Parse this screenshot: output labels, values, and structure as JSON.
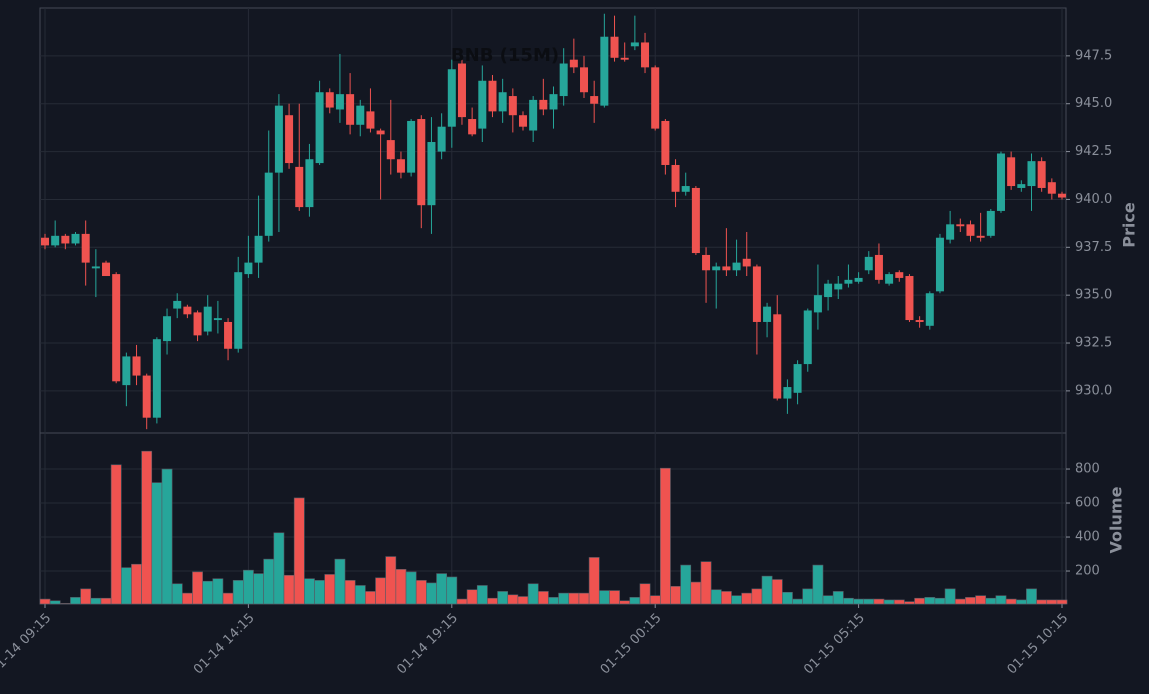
{
  "chart_data": {
    "type": "candlestick",
    "title": "BNB (15M)",
    "ylabel": "Price",
    "volume_label": "Volume",
    "categories": [
      "01-14 09:15",
      null,
      null,
      null,
      null,
      null,
      null,
      null,
      null,
      null,
      null,
      null,
      null,
      null,
      null,
      null,
      null,
      null,
      null,
      null,
      "01-14 14:15",
      null,
      null,
      null,
      null,
      null,
      null,
      null,
      null,
      null,
      null,
      null,
      null,
      null,
      null,
      null,
      null,
      null,
      null,
      null,
      "01-14 19:15",
      null,
      null,
      null,
      null,
      null,
      null,
      null,
      null,
      null,
      null,
      null,
      null,
      null,
      null,
      null,
      null,
      null,
      null,
      null,
      "01-15 00:15",
      null,
      null,
      null,
      null,
      null,
      null,
      null,
      null,
      null,
      null,
      null,
      null,
      null,
      null,
      null,
      null,
      null,
      null,
      null,
      "01-15 05:15",
      null,
      null,
      null,
      null,
      null,
      null,
      null,
      null,
      null,
      null,
      null,
      null,
      null,
      null,
      null,
      null,
      null,
      null,
      null,
      "01-15 10:15"
    ],
    "open": [
      938.0,
      937.6,
      938.1,
      937.7,
      938.2,
      936.4,
      936.7,
      936.1,
      930.3,
      931.8,
      930.8,
      928.6,
      932.6,
      934.3,
      934.4,
      934.1,
      933.1,
      933.7,
      933.6,
      932.2,
      936.1,
      936.7,
      938.1,
      941.4,
      944.4,
      941.7,
      939.6,
      941.9,
      945.6,
      944.7,
      945.5,
      943.9,
      944.6,
      943.6,
      943.1,
      942.1,
      941.4,
      944.2,
      939.7,
      942.5,
      943.8,
      947.1,
      944.2,
      943.7,
      946.2,
      944.6,
      945.4,
      944.4,
      943.6,
      945.2,
      944.7,
      945.4,
      947.3,
      946.9,
      945.4,
      944.9,
      948.5,
      947.4,
      948.0,
      948.2,
      946.9,
      944.1,
      941.8,
      940.4,
      940.6,
      937.1,
      936.3,
      936.5,
      936.3,
      936.9,
      936.5,
      933.6,
      934.0,
      929.6,
      929.9,
      931.4,
      934.1,
      934.9,
      935.3,
      935.6,
      935.7,
      936.3,
      937.1,
      935.6,
      936.2,
      936.0,
      933.7,
      933.4,
      935.2,
      937.9,
      938.7,
      938.7,
      938.1,
      938.1,
      939.4,
      942.2,
      940.6,
      940.7,
      942.0,
      940.9,
      940.3
    ],
    "high": [
      938.2,
      938.9,
      938.2,
      938.3,
      938.9,
      937.4,
      936.8,
      936.2,
      932.0,
      932.4,
      930.9,
      932.8,
      934.3,
      935.1,
      934.5,
      934.2,
      935.0,
      934.7,
      933.8,
      937.0,
      938.1,
      940.2,
      943.6,
      945.5,
      945.0,
      945.0,
      942.9,
      946.2,
      945.8,
      947.6,
      946.6,
      945.2,
      945.8,
      943.7,
      945.2,
      942.5,
      944.2,
      944.4,
      944.3,
      944.5,
      947.3,
      947.5,
      944.8,
      947.0,
      946.5,
      946.3,
      945.8,
      944.6,
      945.4,
      946.3,
      945.9,
      947.9,
      948.4,
      947.5,
      946.2,
      949.7,
      949.6,
      948.2,
      949.6,
      948.7,
      947.0,
      944.2,
      942.1,
      941.4,
      940.7,
      937.5,
      936.7,
      938.5,
      937.9,
      938.3,
      936.6,
      934.6,
      935.0,
      930.6,
      931.6,
      934.3,
      936.6,
      935.8,
      936.0,
      936.6,
      936.2,
      937.3,
      937.7,
      936.2,
      936.3,
      936.1,
      933.9,
      935.2,
      938.2,
      939.4,
      939.0,
      938.9,
      939.3,
      939.5,
      942.5,
      942.5,
      941.0,
      942.4,
      942.2,
      941.1,
      940.4
    ],
    "low": [
      937.4,
      937.5,
      937.4,
      937.6,
      935.5,
      934.9,
      936.0,
      930.4,
      929.2,
      930.3,
      928.0,
      928.3,
      931.9,
      933.8,
      933.8,
      932.6,
      932.9,
      933.0,
      931.6,
      932.0,
      935.9,
      935.9,
      937.8,
      938.3,
      941.6,
      939.4,
      939.1,
      941.8,
      944.5,
      944.0,
      943.4,
      943.3,
      943.5,
      940.0,
      941.3,
      941.1,
      941.2,
      938.5,
      938.2,
      942.1,
      942.7,
      943.9,
      943.3,
      943.0,
      944.3,
      944.0,
      943.5,
      943.6,
      943.0,
      944.4,
      943.7,
      944.9,
      946.6,
      945.3,
      944.0,
      944.8,
      947.2,
      947.2,
      947.8,
      946.6,
      943.6,
      941.3,
      939.6,
      940.2,
      937.1,
      934.6,
      934.3,
      936.0,
      936.0,
      936.0,
      931.9,
      932.8,
      929.5,
      928.8,
      929.3,
      931.0,
      933.2,
      934.2,
      934.8,
      935.4,
      935.6,
      936.1,
      935.6,
      935.5,
      935.7,
      933.6,
      933.3,
      933.2,
      935.1,
      937.7,
      938.3,
      937.8,
      937.8,
      938.0,
      939.3,
      940.5,
      940.4,
      939.4,
      940.4,
      940.0,
      940.0
    ],
    "close": [
      937.6,
      938.1,
      937.7,
      938.2,
      936.7,
      936.5,
      936.0,
      930.5,
      931.8,
      930.8,
      928.6,
      932.7,
      933.9,
      934.7,
      934.0,
      932.9,
      934.4,
      933.8,
      932.2,
      936.2,
      936.7,
      938.1,
      941.4,
      944.9,
      941.9,
      939.6,
      942.1,
      945.6,
      944.8,
      945.5,
      943.9,
      944.9,
      943.7,
      943.4,
      942.1,
      941.4,
      944.1,
      939.7,
      943.0,
      943.8,
      946.8,
      944.3,
      943.4,
      946.2,
      944.6,
      945.6,
      944.4,
      943.8,
      945.2,
      944.7,
      945.5,
      947.1,
      946.9,
      945.6,
      945.0,
      948.5,
      947.4,
      947.3,
      948.2,
      946.9,
      943.7,
      941.8,
      940.4,
      940.7,
      937.2,
      936.3,
      936.5,
      936.3,
      936.7,
      936.5,
      933.6,
      934.4,
      929.6,
      930.2,
      931.4,
      934.2,
      935.0,
      935.6,
      935.6,
      935.8,
      935.9,
      937.0,
      935.8,
      936.1,
      935.9,
      933.7,
      933.6,
      935.1,
      938.0,
      938.7,
      938.6,
      938.1,
      938.0,
      939.4,
      942.4,
      940.7,
      940.8,
      942.0,
      940.6,
      940.3,
      940.1
    ],
    "volume": [
      35,
      25,
      10,
      45,
      95,
      40,
      40,
      825,
      220,
      240,
      905,
      720,
      800,
      125,
      70,
      195,
      140,
      155,
      70,
      145,
      205,
      185,
      270,
      425,
      175,
      630,
      155,
      145,
      180,
      270,
      145,
      115,
      80,
      160,
      285,
      210,
      195,
      145,
      130,
      185,
      165,
      35,
      90,
      115,
      40,
      80,
      60,
      50,
      125,
      80,
      45,
      70,
      70,
      70,
      280,
      85,
      85,
      25,
      45,
      125,
      55,
      805,
      110,
      235,
      135,
      255,
      90,
      80,
      55,
      70,
      95,
      170,
      150,
      75,
      35,
      95,
      235,
      55,
      80,
      40,
      35,
      35,
      35,
      30,
      30,
      20,
      40,
      45,
      40,
      95,
      35,
      45,
      55,
      40,
      55,
      35,
      30,
      95,
      30,
      30,
      30
    ],
    "up_color": "#26a69a",
    "down_color": "#ef5350",
    "grid": true,
    "ylim": [
      927.8,
      950.0
    ],
    "yticks": [
      {
        "value": 930,
        "label": "930.0"
      },
      932.5,
      {
        "value": 935,
        "label": "935.0"
      },
      937.5,
      {
        "value": 940,
        "label": "940.0"
      },
      942.5,
      {
        "value": 945,
        "label": "945.0"
      },
      947.5
    ],
    "volume_ylim": [
      6,
      1012
    ],
    "volume_yticks": [
      200,
      400,
      600,
      800
    ]
  }
}
